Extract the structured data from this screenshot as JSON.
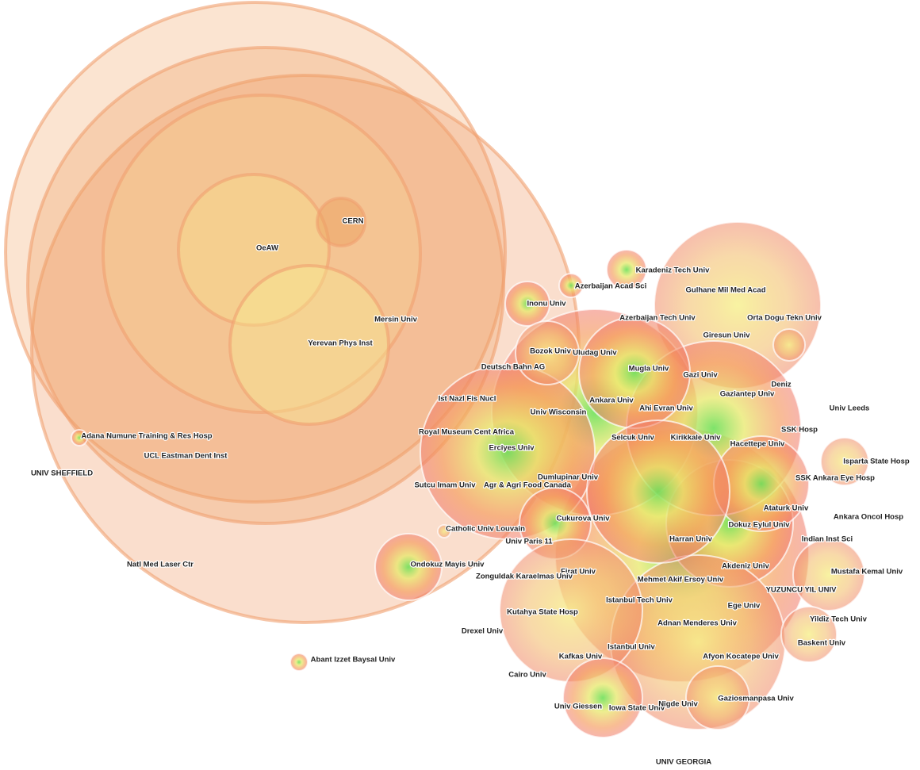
{
  "nodes": [
    {
      "label": "CERN"
    },
    {
      "label": "OeAW"
    },
    {
      "label": "Mersin Univ"
    },
    {
      "label": "Yerevan Phys Inst"
    },
    {
      "label": "Karadeniz Tech Univ"
    },
    {
      "label": "Azerbaijan Acad Sci"
    },
    {
      "label": "Gulhane Mil Med Acad"
    },
    {
      "label": "Inonu Univ"
    },
    {
      "label": "Azerbaijan Tech Univ"
    },
    {
      "label": "Orta Dogu Tekn Univ"
    },
    {
      "label": "Giresun Univ"
    },
    {
      "label": "Bozok Univ"
    },
    {
      "label": "Uludag Univ"
    },
    {
      "label": "Deutsch Bahn AG"
    },
    {
      "label": "Mugla Univ"
    },
    {
      "label": "Gazi Univ"
    },
    {
      "label": "Deniz"
    },
    {
      "label": "Gaziantep Univ"
    },
    {
      "label": "Ist Nazl Fis Nucl"
    },
    {
      "label": "Ankara Univ"
    },
    {
      "label": "Ahi Evran Univ"
    },
    {
      "label": "Univ Leeds"
    },
    {
      "label": "Univ Wisconsin"
    },
    {
      "label": "SSK Hosp"
    },
    {
      "label": "Royal Museum Cent Africa"
    },
    {
      "label": "Adana Numune Training & Res Hosp"
    },
    {
      "label": "Selcuk Univ"
    },
    {
      "label": "Kirikkale Univ"
    },
    {
      "label": "Hacettepe Univ"
    },
    {
      "label": "Erciyes Univ"
    },
    {
      "label": "UCL Eastman Dent Inst"
    },
    {
      "label": "Isparta State Hosp"
    },
    {
      "label": "UNIV SHEFFIELD"
    },
    {
      "label": "Dumlupinar Univ"
    },
    {
      "label": "SSK Ankara Eye Hosp"
    },
    {
      "label": "Sutcu Imam Univ"
    },
    {
      "label": "Agr & Agri Food Canada"
    },
    {
      "label": "Ataturk Univ"
    },
    {
      "label": "Ankara Oncol Hosp"
    },
    {
      "label": "Cukurova Univ"
    },
    {
      "label": "Dokuz Eylul Univ"
    },
    {
      "label": "Catholic Univ Louvain"
    },
    {
      "label": "Harran Univ"
    },
    {
      "label": "Univ Paris 11"
    },
    {
      "label": "Indian Inst Sci"
    },
    {
      "label": "Natl Med Laser Ctr"
    },
    {
      "label": "Ondokuz Mayis Univ"
    },
    {
      "label": "Akdeniz Univ"
    },
    {
      "label": "Firat Univ"
    },
    {
      "label": "Mustafa Kemal Univ"
    },
    {
      "label": "Zonguldak Karaelmas Univ"
    },
    {
      "label": "Mehmet Akif Ersoy Univ"
    },
    {
      "label": "YUZUNCU YIL UNIV"
    },
    {
      "label": "Istanbul Tech Univ"
    },
    {
      "label": "Ege Univ"
    },
    {
      "label": "Kutahya State Hosp"
    },
    {
      "label": "Yildiz Tech Univ"
    },
    {
      "label": "Adnan Menderes Univ"
    },
    {
      "label": "Drexel Univ"
    },
    {
      "label": "Baskent Univ"
    },
    {
      "label": "Istanbul Univ"
    },
    {
      "label": "Kafkas Univ"
    },
    {
      "label": "Afyon Kocatepe Univ"
    },
    {
      "label": "Abant Izzet Baysal Univ"
    },
    {
      "label": "Cairo Univ"
    },
    {
      "label": "Gaziosmanpasa Univ"
    },
    {
      "label": "Univ Giessen"
    },
    {
      "label": "Iowa State Univ"
    },
    {
      "label": "Nigde Univ"
    },
    {
      "label": "UNIV GEORGIA"
    }
  ]
}
